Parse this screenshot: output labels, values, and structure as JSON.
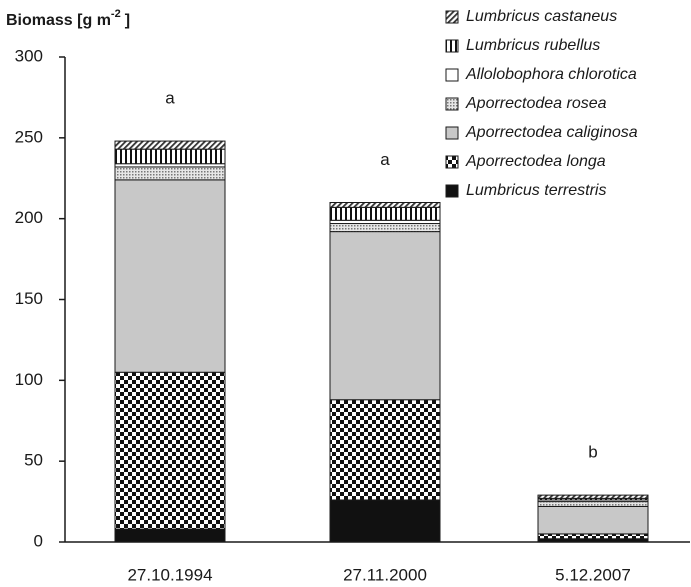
{
  "chart_data": {
    "type": "stacked_bar",
    "y_label": {
      "text": "Biomass [g m",
      "superscript": "-2",
      "suffix": "]"
    },
    "categories": [
      "27.10.1994",
      "27.11.2000",
      "5.12.2007"
    ],
    "series": [
      {
        "name": "Lumbricus terrestris",
        "color": "#111111",
        "pattern": "solid",
        "values": [
          8,
          26,
          2
        ]
      },
      {
        "name": "Aporrectodea longa",
        "color": "#111111",
        "pattern": "checker",
        "values": [
          97,
          62,
          3
        ]
      },
      {
        "name": "Aporrectodea caliginosa",
        "color": "#c8c8c8",
        "pattern": "solid",
        "values": [
          119,
          104,
          17
        ]
      },
      {
        "name": "Aporrectodea rosea",
        "color": "#999999",
        "pattern": "dots",
        "values": [
          8,
          5,
          3
        ]
      },
      {
        "name": "Allolobophora chlorotica",
        "color": "#ffffff",
        "pattern": "solid",
        "values": [
          2,
          2,
          1
        ]
      },
      {
        "name": "Lumbricus rubellus",
        "color": "#111111",
        "pattern": "vertical",
        "values": [
          9,
          8,
          1
        ]
      },
      {
        "name": "Lumbricus castaneus",
        "color": "#333333",
        "pattern": "diagonal",
        "values": [
          5,
          3,
          2
        ]
      }
    ],
    "annotations": [
      "a",
      "a",
      "b"
    ],
    "ylim": [
      0,
      300
    ],
    "yticks": [
      0,
      50,
      100,
      150,
      200,
      250,
      300
    ],
    "legend": "top-right",
    "grid": false
  }
}
